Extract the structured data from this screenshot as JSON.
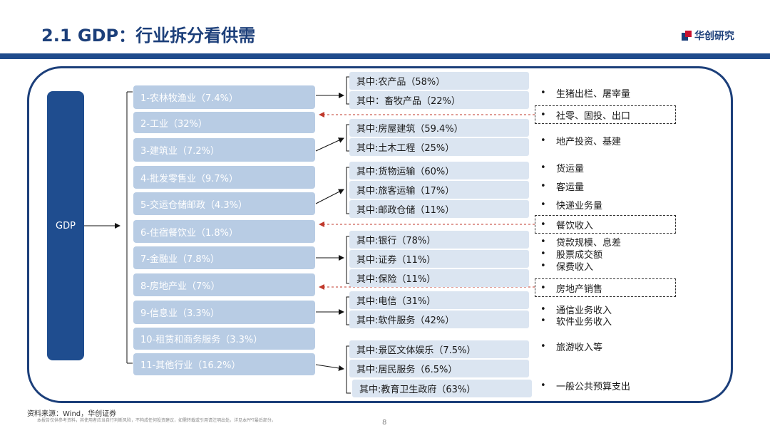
{
  "header": {
    "title": "2.1 GDP：行业拆分看供需",
    "logo_text": "华创研究"
  },
  "diagram": {
    "root": "GDP",
    "industries": [
      "1-农林牧渔业（7.4%）",
      "2-工业（32%）",
      "3-建筑业（7.2%）",
      "4-批发零售业（9.7%）",
      "5-交运仓储邮政（4.3%）",
      "6-住宿餐饮业（1.8%）",
      "7-金融业（7.8%）",
      "8-房地产业（7%）",
      "9-信息业（3.3%）",
      "10-租赁和商务服务（3.3%）",
      "11-其他行业（16.2%）"
    ],
    "sub_items": [
      "其中:农产品（58%）",
      "其中：畜牧产品（22%）",
      "其中:房屋建筑（59.4%）",
      "其中:土木工程（25%）",
      "其中:货物运输（60%）",
      "其中:旅客运输（17%）",
      "其中:邮政仓储（11%）",
      "其中:银行（78%）",
      "其中:证券（11%）",
      "其中:保险（11%）",
      "其中:电信（31%）",
      "其中:软件服务（42%）",
      "其中:景区文体娱乐（7.5%）",
      "其中:居民服务（6.5%）",
      "其中:教育卫生政府（63%）"
    ],
    "indicators": [
      "生猪出栏、屠宰量",
      "社零、固投、出口",
      "地产投资、基建",
      "货运量",
      "客运量",
      "快递业务量",
      "餐饮收入",
      "贷款规模、息差",
      "股票成交额",
      "保费收入",
      "房地产销售",
      "通信业务收入",
      "软件业务收入",
      "旅游收入等",
      "一般公共预算支出"
    ],
    "bullet": "•"
  },
  "colors": {
    "title": "#1c3f7a",
    "bar": "#1f4b8c",
    "gdp_box": "#1f4d8f",
    "industry_box": "#b8cce4",
    "sub_box": "#dbe5f1",
    "dashed_arrow": "#c0392b"
  },
  "footer": {
    "source": "资料来源：Wind，华创证券",
    "disclaimer": "本报告仅供参考资料，其使用者应当自行判断风险，不构成任何投资建议，如需转载或引用请注明出处。详见本PPT最后部分。",
    "page_number": "8"
  }
}
